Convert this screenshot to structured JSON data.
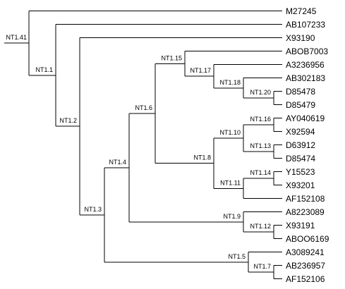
{
  "tree": {
    "line_color": "#000000",
    "root": {
      "label": "NT1.41",
      "children": [
        {
          "leaf": "M27245"
        },
        {
          "label": "NT1.1",
          "children": [
            {
              "leaf": "AB107233"
            },
            {
              "label": "NT1.2",
              "children": [
                {
                  "leaf": "X93190"
                },
                {
                  "label": "NT1.3",
                  "children": [
                    {
                      "label": "NT1.4",
                      "children": [
                        {
                          "label": "NT1.6",
                          "children": [
                            {
                              "label": "NT1.15",
                              "children": [
                                {
                                  "leaf": "ABOB7003"
                                },
                                {
                                  "label": "NT1.17",
                                  "children": [
                                    {
                                      "leaf": "A3236956"
                                    },
                                    {
                                      "label": "NT1.18",
                                      "children": [
                                        {
                                          "leaf": "AB302183"
                                        },
                                        {
                                          "label": "NT1.20",
                                          "children": [
                                            {
                                              "leaf": "D85478"
                                            },
                                            {
                                              "leaf": "D85479"
                                            }
                                          ]
                                        }
                                      ]
                                    }
                                  ]
                                }
                              ]
                            },
                            {
                              "label": "NT1.8",
                              "children": [
                                {
                                  "label": "NT1.10",
                                  "children": [
                                    {
                                      "label": "NT1.16",
                                      "children": [
                                        {
                                          "leaf": "AY040619"
                                        },
                                        {
                                          "leaf": "X92594"
                                        }
                                      ]
                                    },
                                    {
                                      "label": "NT1.13",
                                      "children": [
                                        {
                                          "leaf": "D63912"
                                        },
                                        {
                                          "leaf": "D85474"
                                        }
                                      ]
                                    }
                                  ]
                                },
                                {
                                  "label": "NT1.11",
                                  "children": [
                                    {
                                      "label": "NT1.14",
                                      "children": [
                                        {
                                          "leaf": "Y15523"
                                        },
                                        {
                                          "leaf": "X93201"
                                        }
                                      ]
                                    },
                                    {
                                      "leaf": "AF152108"
                                    }
                                  ]
                                }
                              ]
                            }
                          ]
                        },
                        {
                          "label": "NT1.9",
                          "children": [
                            {
                              "leaf": "A8223089"
                            },
                            {
                              "label": "NT1.12",
                              "children": [
                                {
                                  "leaf": "X93191"
                                },
                                {
                                  "leaf": "ABOO6169"
                                }
                              ]
                            }
                          ]
                        }
                      ]
                    },
                    {
                      "label": "NT1.5",
                      "children": [
                        {
                          "leaf": "A3089241"
                        },
                        {
                          "label": "NT1.7",
                          "children": [
                            {
                              "leaf": "AB236957"
                            },
                            {
                              "leaf": "AF152106"
                            }
                          ]
                        }
                      ]
                    }
                  ]
                }
              ]
            }
          ]
        }
      ]
    }
  }
}
